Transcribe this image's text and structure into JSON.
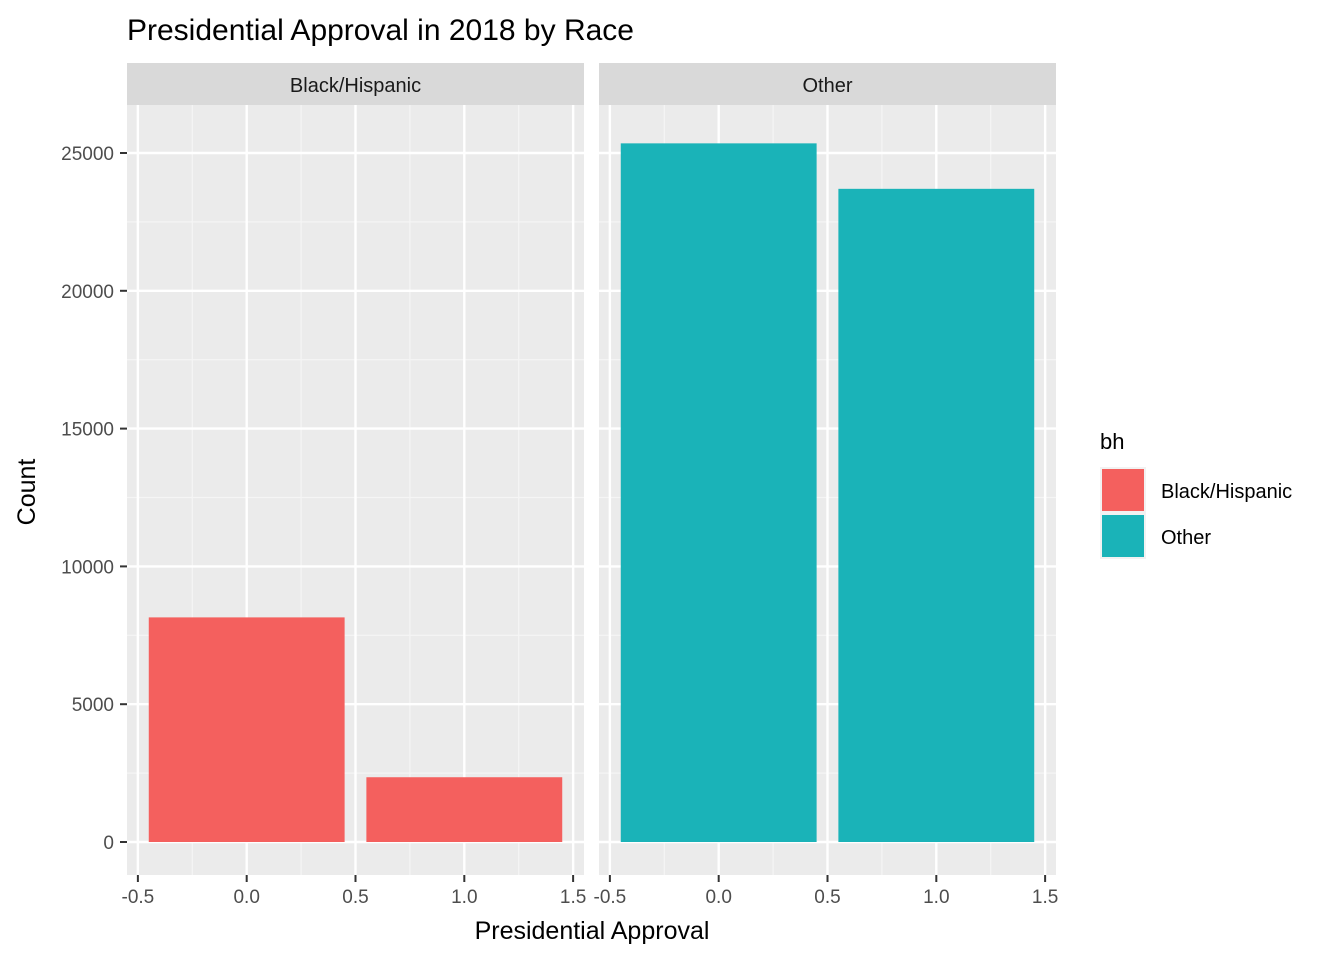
{
  "chart_data": {
    "type": "bar",
    "title": "Presidential Approval in 2018 by Race",
    "xlabel": "Presidential Approval",
    "ylabel": "Count",
    "xlim": [
      -0.5,
      1.5
    ],
    "ylim": [
      0,
      26800
    ],
    "x_ticks": [
      "-0.5",
      "0.0",
      "0.5",
      "1.0",
      "1.5"
    ],
    "y_ticks": [
      "0",
      "5000",
      "10000",
      "15000",
      "20000",
      "25000"
    ],
    "grid": true,
    "legend": {
      "title": "bh",
      "placement": "right",
      "entries": [
        {
          "label": "Black/Hispanic",
          "color": "#F4605E"
        },
        {
          "label": "Other",
          "color": "#1AB3B8"
        }
      ]
    },
    "facets": [
      {
        "label": "Black/Hispanic",
        "color": "#F4605E",
        "bars": [
          {
            "x": 0,
            "value": 8150
          },
          {
            "x": 1,
            "value": 2350
          }
        ]
      },
      {
        "label": "Other",
        "color": "#1AB3B8",
        "bars": [
          {
            "x": 0,
            "value": 25350
          },
          {
            "x": 1,
            "value": 23700
          }
        ]
      }
    ]
  }
}
